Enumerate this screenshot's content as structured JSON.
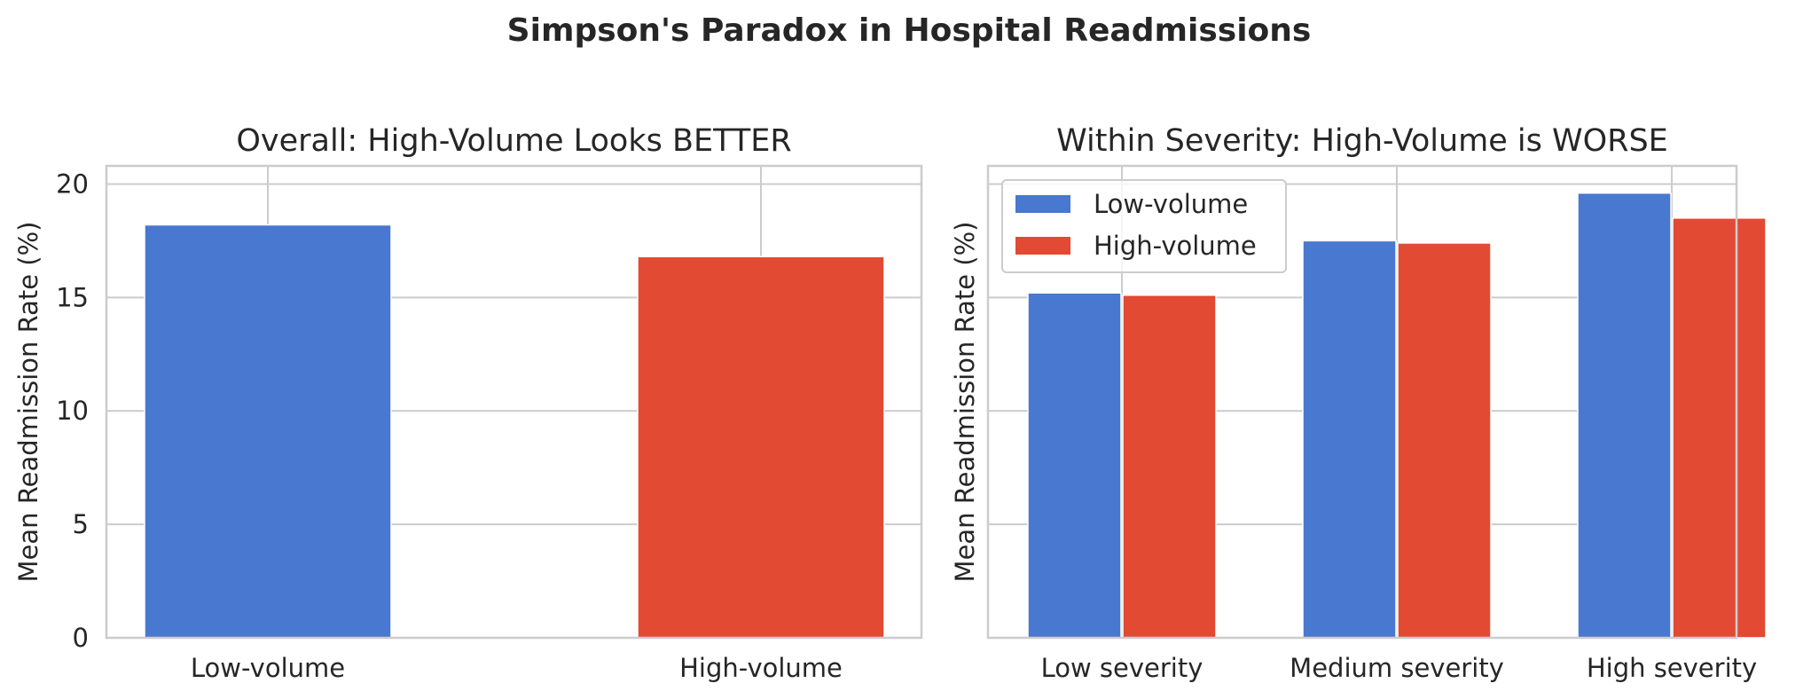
{
  "suptitle": "Simpson's Paradox in Hospital Readmissions",
  "chart_data": [
    {
      "type": "bar",
      "title": "Overall: High-Volume Looks BETTER",
      "xlabel": "",
      "ylabel": "Mean Readmission Rate (%)",
      "categories": [
        "Low-volume",
        "High-volume"
      ],
      "values": [
        18.2,
        16.8
      ],
      "colors": [
        "#4878cf",
        "#e24a33"
      ],
      "ylim": [
        0,
        20.8
      ],
      "yticks": [
        0,
        5,
        10,
        15,
        20
      ],
      "grid": true
    },
    {
      "type": "bar",
      "title": "Within Severity: High-Volume is WORSE",
      "xlabel": "",
      "ylabel": "Mean Readmission Rate (%)",
      "categories": [
        "Low severity",
        "Medium severity",
        "High severity"
      ],
      "series": [
        {
          "name": "Low-volume",
          "values": [
            15.2,
            17.5,
            19.6
          ],
          "color": "#4878cf"
        },
        {
          "name": "High-volume",
          "values": [
            15.1,
            17.4,
            18.5
          ],
          "color": "#e24a33"
        }
      ],
      "ylim": [
        0,
        20.8
      ],
      "yticks": [
        0,
        5,
        10,
        15,
        20
      ],
      "grid": true,
      "legend": {
        "position": "upper-left",
        "entries": [
          "Low-volume",
          "High-volume"
        ]
      }
    }
  ]
}
